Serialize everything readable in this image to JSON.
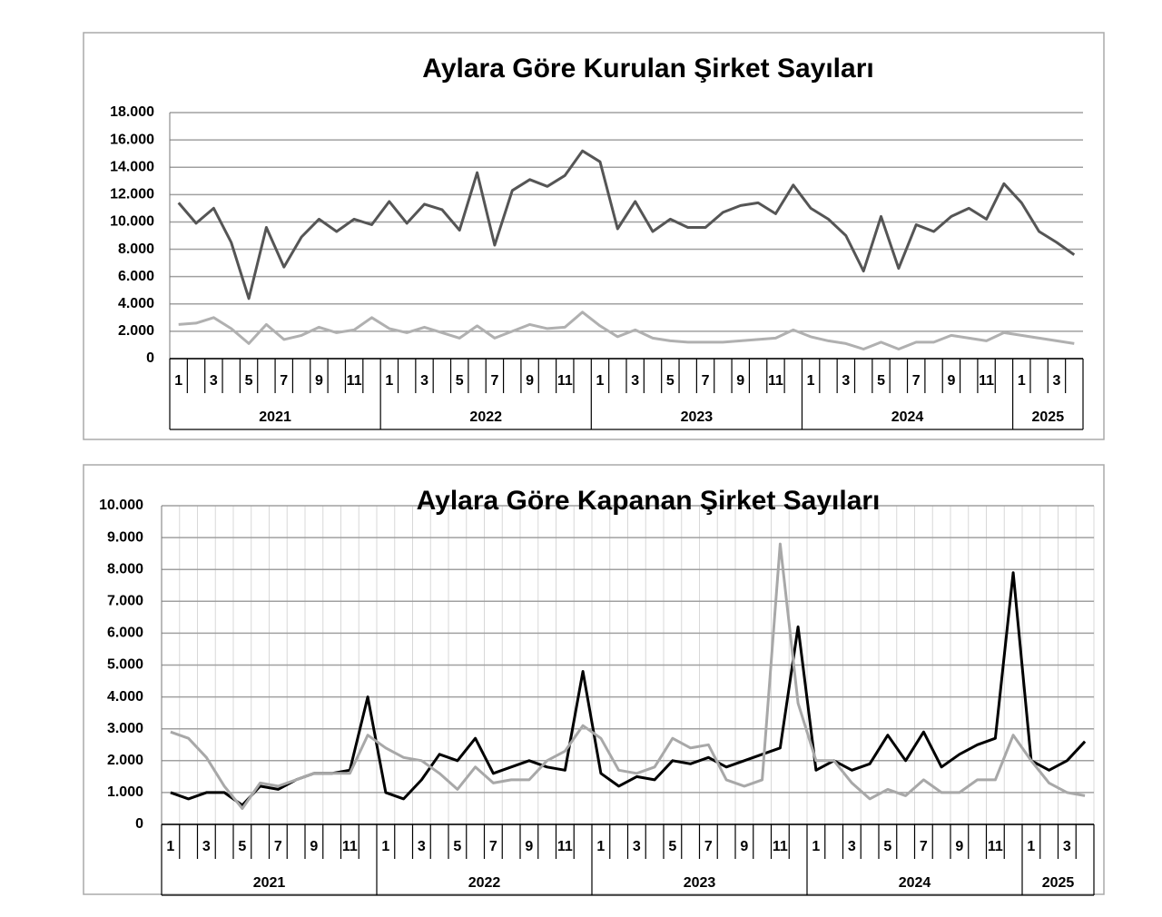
{
  "chart_data": [
    {
      "type": "line",
      "title": "Aylara Göre Kurulan Şirket Sayıları",
      "categories": [
        "1",
        null,
        "3",
        null,
        "5",
        null,
        "7",
        null,
        "9",
        null,
        "11",
        null,
        "1",
        null,
        "3",
        null,
        "5",
        null,
        "7",
        null,
        "9",
        null,
        "11",
        null,
        "1",
        null,
        "3",
        null,
        "5",
        null,
        "7",
        null,
        "9",
        null,
        "11",
        null,
        "1",
        null,
        "3",
        null,
        "5",
        null,
        "7",
        null,
        "9",
        null,
        "11",
        null,
        "1",
        null,
        "3",
        null
      ],
      "groups": [
        "2021",
        "2022",
        "2023",
        "2024",
        "2025"
      ],
      "series": [
        {
          "color": "#555555",
          "values": [
            11400,
            9900,
            11000,
            8500,
            4400,
            9600,
            6700,
            8900,
            10200,
            9300,
            10200,
            9800,
            11500,
            9900,
            11300,
            10900,
            9400,
            13600,
            8300,
            12300,
            13100,
            12600,
            13400,
            15200,
            14400,
            9500,
            11500,
            9300,
            10200,
            9600,
            9600,
            10700,
            11200,
            11400,
            10600,
            12700,
            11000,
            10200,
            9000,
            6400,
            10400,
            6600,
            9800,
            9300,
            10400,
            11000,
            10200,
            12800,
            11400,
            9300,
            8500,
            7600
          ]
        },
        {
          "color": "#b0b0b0",
          "values": [
            2500,
            2600,
            3000,
            2200,
            1100,
            2500,
            1400,
            1700,
            2300,
            1900,
            2100,
            3000,
            2200,
            1900,
            2300,
            1900,
            1500,
            2400,
            1500,
            2000,
            2500,
            2200,
            2300,
            3400,
            2400,
            1600,
            2100,
            1500,
            1300,
            1200,
            1200,
            1200,
            1300,
            1400,
            1500,
            2100,
            1600,
            1300,
            1100,
            700,
            1200,
            700,
            1200,
            1200,
            1700,
            1500,
            1300,
            1900,
            1700,
            1500,
            1300,
            1100
          ]
        }
      ],
      "ylim": [
        0,
        18000
      ],
      "yticks": [
        0,
        {
          "value": 2000,
          "label": "2.000"
        },
        {
          "value": 4000,
          "label": "4.000"
        },
        {
          "value": 6000,
          "label": "6.000"
        },
        {
          "value": 8000,
          "label": "8.000"
        },
        {
          "value": 10000,
          "label": "10.000"
        },
        {
          "value": 12000,
          "label": "12.000"
        },
        {
          "value": 14000,
          "label": "14.000"
        },
        {
          "value": 16000,
          "label": "16.000"
        },
        {
          "value": 18000,
          "label": "18.000"
        }
      ],
      "grid": true,
      "x_grid": false
    },
    {
      "type": "line",
      "title": "Aylara Göre Kapanan Şirket Sayıları",
      "categories": [
        "1",
        null,
        "3",
        null,
        "5",
        null,
        "7",
        null,
        "9",
        null,
        "11",
        null,
        "1",
        null,
        "3",
        null,
        "5",
        null,
        "7",
        null,
        "9",
        null,
        "11",
        null,
        "1",
        null,
        "3",
        null,
        "5",
        null,
        "7",
        null,
        "9",
        null,
        "11",
        null,
        "1",
        null,
        "3",
        null,
        "5",
        null,
        "7",
        null,
        "9",
        null,
        "11",
        null,
        "1",
        null,
        "3",
        null
      ],
      "groups": [
        "2021",
        "2022",
        "2023",
        "2024",
        "2025"
      ],
      "series": [
        {
          "color": "#000000",
          "values": [
            1000,
            800,
            1000,
            1000,
            600,
            1200,
            1100,
            1400,
            1600,
            1600,
            1700,
            4000,
            1000,
            800,
            1400,
            2200,
            2000,
            2700,
            1600,
            1800,
            2000,
            1800,
            1700,
            4800,
            1600,
            1200,
            1500,
            1400,
            2000,
            1900,
            2100,
            1800,
            2000,
            2200,
            2400,
            6200,
            1700,
            2000,
            1700,
            1900,
            2800,
            2000,
            2900,
            1800,
            2200,
            2500,
            2700,
            7900,
            2000,
            1700,
            2000,
            2600
          ]
        },
        {
          "color": "#a8a8a8",
          "values": [
            2900,
            2700,
            2100,
            1200,
            500,
            1300,
            1200,
            1400,
            1600,
            1600,
            1600,
            2800,
            2400,
            2100,
            2000,
            1600,
            1100,
            1800,
            1300,
            1400,
            1400,
            2000,
            2300,
            3100,
            2700,
            1700,
            1600,
            1800,
            2700,
            2400,
            2500,
            1400,
            1200,
            1400,
            8800,
            3800,
            2000,
            2000,
            1300,
            800,
            1100,
            900,
            1400,
            1000,
            1000,
            1400,
            1400,
            2800,
            2000,
            1300,
            1000,
            900
          ]
        }
      ],
      "ylim": [
        0,
        10000
      ],
      "yticks": [
        0,
        {
          "value": 1000,
          "label": "1.000"
        },
        {
          "value": 2000,
          "label": "2.000"
        },
        {
          "value": 3000,
          "label": "3.000"
        },
        {
          "value": 4000,
          "label": "4.000"
        },
        {
          "value": 5000,
          "label": "5.000"
        },
        {
          "value": 6000,
          "label": "6.000"
        },
        {
          "value": 7000,
          "label": "7.000"
        },
        {
          "value": 8000,
          "label": "8.000"
        },
        {
          "value": 9000,
          "label": "9.000"
        },
        {
          "value": 10000,
          "label": "10.000"
        }
      ],
      "grid": true,
      "x_grid": true
    }
  ]
}
